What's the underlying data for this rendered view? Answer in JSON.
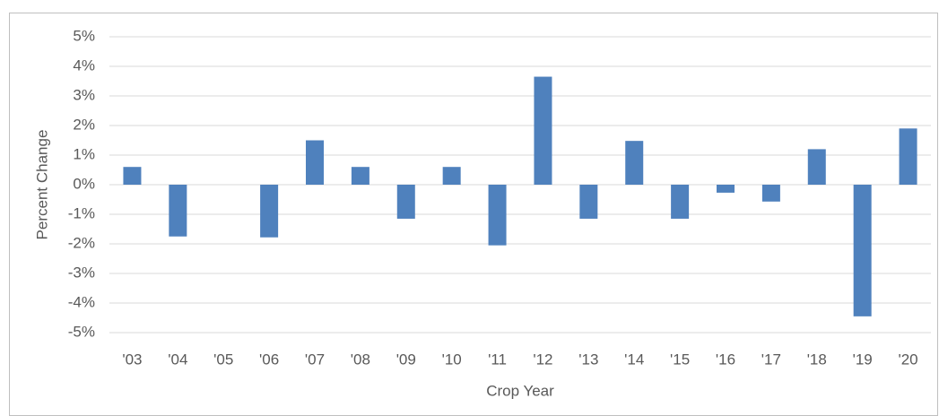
{
  "chart_data": {
    "type": "bar",
    "y_label": "Percent Change",
    "x_label": "Crop Year",
    "categories": [
      "'03",
      "'04",
      "'05",
      "'06",
      "'07",
      "'08",
      "'09",
      "'10",
      "'11",
      "'12",
      "'13",
      "'14",
      "'15",
      "'16",
      "'17",
      "'18",
      "'19",
      "'20"
    ],
    "values": [
      0.6,
      -1.75,
      0,
      -1.78,
      1.5,
      0.6,
      -1.15,
      0.6,
      -2.05,
      3.65,
      -1.15,
      1.48,
      -1.15,
      -0.27,
      -0.57,
      1.2,
      -4.45,
      1.9
    ],
    "color": "#4f81bd",
    "ylim": [
      -5,
      5
    ],
    "yticks": [
      {
        "value": -5,
        "label": "-5%"
      },
      {
        "value": -4,
        "label": "-4%"
      },
      {
        "value": -3,
        "label": "-3%"
      },
      {
        "value": -2,
        "label": "-2%"
      },
      {
        "value": -1,
        "label": "-1%"
      },
      {
        "value": 0,
        "label": "0%"
      },
      {
        "value": 1,
        "label": "1%"
      },
      {
        "value": 2,
        "label": "2%"
      },
      {
        "value": 3,
        "label": "3%"
      },
      {
        "value": 4,
        "label": "4%"
      },
      {
        "value": 5,
        "label": "5%"
      }
    ],
    "grid": true
  }
}
